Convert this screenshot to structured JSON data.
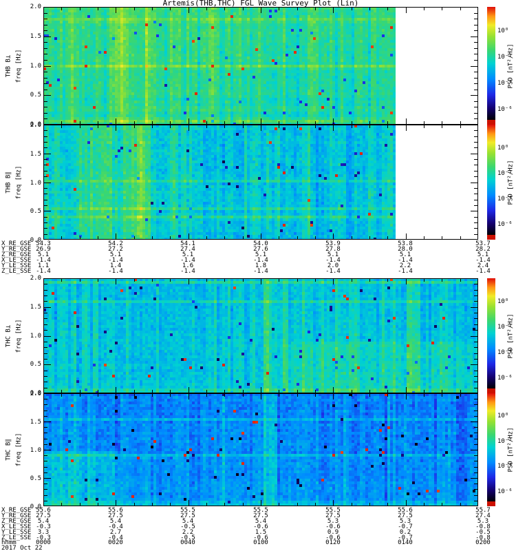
{
  "title": "Artemis(THB,THC) FGL Wave Survey Plot (Lin)",
  "colors": {
    "background": "#ffffff",
    "frame": "#000000",
    "colorbar_bottom_band": "#cc1100"
  },
  "y_axis": {
    "label_line2": "freq [Hz]",
    "ticks": [
      "0.0",
      "0.5",
      "1.0",
      "1.5",
      "2.0"
    ]
  },
  "panels": [
    {
      "id": "thb-bperp",
      "instrument": "THB B⊥",
      "freq_label": "freq [Hz]"
    },
    {
      "id": "thb-bpar",
      "instrument": "THB B∥",
      "freq_label": "freq [Hz]"
    },
    {
      "id": "thc-bperp",
      "instrument": "THC B⊥",
      "freq_label": "freq [Hz]"
    },
    {
      "id": "thc-bpar",
      "instrument": "THC B∥",
      "freq_label": "freq [Hz]"
    }
  ],
  "colorbar": {
    "label": "PSD [nT²/Hz]",
    "ticks": [
      "10⁰",
      "10⁻²",
      "10⁻⁴",
      "10⁻⁶"
    ]
  },
  "chart_data": {
    "type": "heatmap",
    "subtype": "spectrogram",
    "title": "Artemis(THB,THC) FGL Wave Survey Plot (Lin)",
    "x": {
      "label": "hhmm",
      "date": "2017 Oct 22",
      "ticks": [
        "0000",
        "0020",
        "0040",
        "0100",
        "0120",
        "0140",
        "0200"
      ]
    },
    "y": {
      "label": "freq [Hz]",
      "range": [
        0.0,
        2.0
      ],
      "ticks": [
        0.0,
        0.5,
        1.0,
        1.5,
        2.0
      ]
    },
    "z": {
      "label": "PSD [nT²/Hz]",
      "scale": "log",
      "colorbar_tick_values": [
        1.0,
        0.01,
        0.0001,
        1e-06
      ]
    },
    "grid": false,
    "legend_position": "right-colorbar-per-panel",
    "panels": [
      {
        "name": "THB B⊥",
        "coverage": "data ends ~81% across axis (white gap before 0200)",
        "character": "broadband cyan-green PSD ~1e-3 with yellow-green vertical enhancements near 0020-0030 and 0040"
      },
      {
        "name": "THB B∥",
        "coverage": "data ends ~81% across axis",
        "character": "green-yellow enhanced 0000-0040, bluer cyan-speckled 0040-0140"
      },
      {
        "name": "THC B⊥",
        "coverage": "full 0000-0200",
        "character": "cyan-blue background with yellow vertical bands near 0100 and 0150, greener lower freq at right"
      },
      {
        "name": "THC B∥",
        "coverage": "full 0000-0200",
        "character": "mostly blue ~1e-5..1e-4 with green speckle and green band near 0100"
      }
    ],
    "support_data": {
      "thb": {
        "rows": [
          {
            "label": "X_RE_GSE",
            "values": [
              "54.3",
              "54.2",
              "54.1",
              "54.0",
              "53.9",
              "53.8",
              "53.7"
            ]
          },
          {
            "label": "Y_RE_GSE",
            "values": [
              "26.9",
              "27.2",
              "27.4",
              "27.6",
              "27.8",
              "28.0",
              "28.2"
            ]
          },
          {
            "label": "Z_RE_GSE",
            "values": [
              "5.1",
              "5.1",
              "5.1",
              "5.1",
              "5.1",
              "5.1",
              "5.1"
            ]
          },
          {
            "label": "X_LE_SSE",
            "values": [
              "-1.4",
              "-1.4",
              "-1.4",
              "-1.4",
              "-1.4",
              "-1.4",
              "-1.4"
            ]
          },
          {
            "label": "Y_LE_SSE",
            "values": [
              "1.1",
              "1.4",
              "1.6",
              "1.8",
              "2.0",
              "2.2",
              "2.4"
            ]
          },
          {
            "label": "Z_LE_SSE",
            "values": [
              "-1.4",
              "-1.4",
              "-1.4",
              "-1.4",
              "-1.4",
              "-1.4",
              "-1.4"
            ]
          }
        ]
      },
      "thc": {
        "rows": [
          {
            "label": "X_RE_GSE",
            "values": [
              "55.6",
              "55.6",
              "55.5",
              "55.5",
              "55.5",
              "55.6",
              "55.7"
            ]
          },
          {
            "label": "Y_RE_GSE",
            "values": [
              "27.5",
              "27.5",
              "27.5",
              "27.5",
              "27.5",
              "27.5",
              "27.4"
            ]
          },
          {
            "label": "Z_RE_GSE",
            "values": [
              "5.4",
              "5.4",
              "5.4",
              "5.4",
              "5.3",
              "5.3",
              "5.3"
            ]
          },
          {
            "label": "X_LE_SSE",
            "values": [
              "-0.3",
              "-0.4",
              "-0.5",
              "-0.6",
              "-0.6",
              "-0.7",
              "-0.8"
            ]
          },
          {
            "label": "Y_LE_SSE",
            "values": [
              "3.3",
              "2.7",
              "2.2",
              "1.5",
              "0.9",
              "0.2",
              "-0.5"
            ]
          },
          {
            "label": "Z_LE_SSE",
            "values": [
              "-0.3",
              "-0.4",
              "-0.5",
              "-0.6",
              "-0.6",
              "-0.7",
              "-0.8"
            ]
          }
        ]
      },
      "time_row": {
        "label": "hhmm",
        "values": [
          "0000",
          "0020",
          "0040",
          "0100",
          "0120",
          "0140",
          "0200"
        ]
      },
      "date_row": "2017 Oct 22"
    }
  }
}
